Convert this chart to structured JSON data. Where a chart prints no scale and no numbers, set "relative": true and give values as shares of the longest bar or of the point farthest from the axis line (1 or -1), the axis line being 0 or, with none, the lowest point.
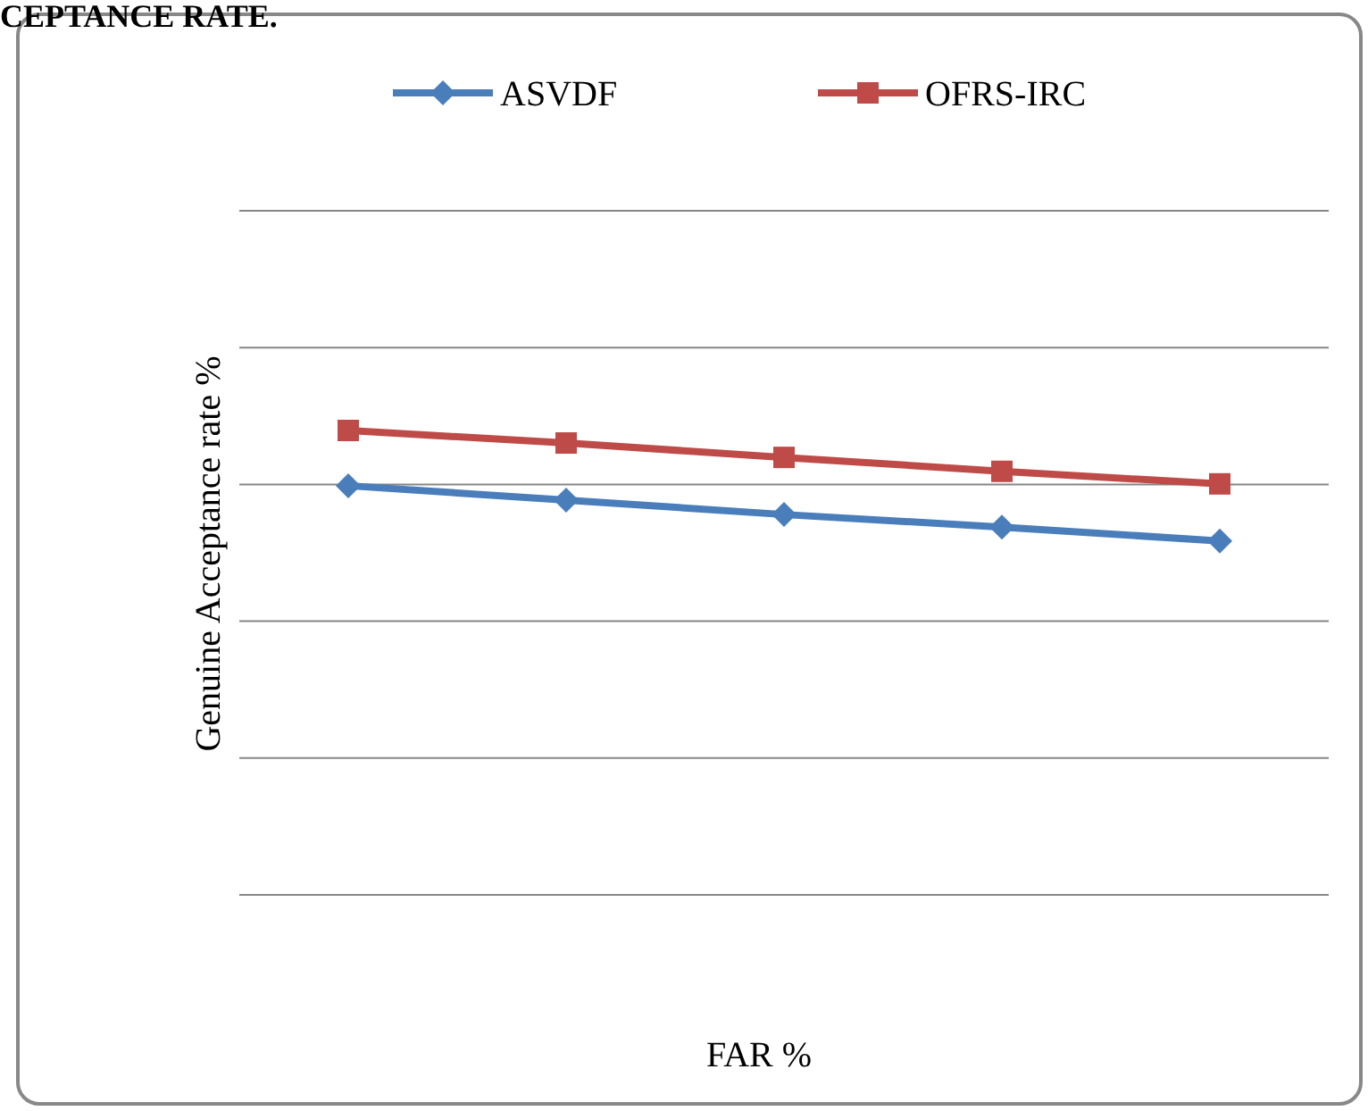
{
  "chart_data": {
    "type": "line",
    "relative": true,
    "categories": [
      null,
      null,
      null,
      null,
      null
    ],
    "ylabel": "Genuine Acceptance  rate  %",
    "xlabel": "FAR %",
    "grid": "y",
    "legend": "top",
    "annotations": [
      "CEPTANCE RATE."
    ],
    "series": [
      {
        "name": "ASVDF",
        "color": "#4a7ebb",
        "marker": "diamond",
        "values": [
          0.881,
          0.85,
          0.819,
          0.792,
          0.762
        ]
      },
      {
        "name": "OFRS-IRC",
        "color": "#be4b48",
        "marker": "square",
        "values": [
          1,
          0.973,
          0.942,
          0.912,
          0.885
        ]
      }
    ]
  }
}
